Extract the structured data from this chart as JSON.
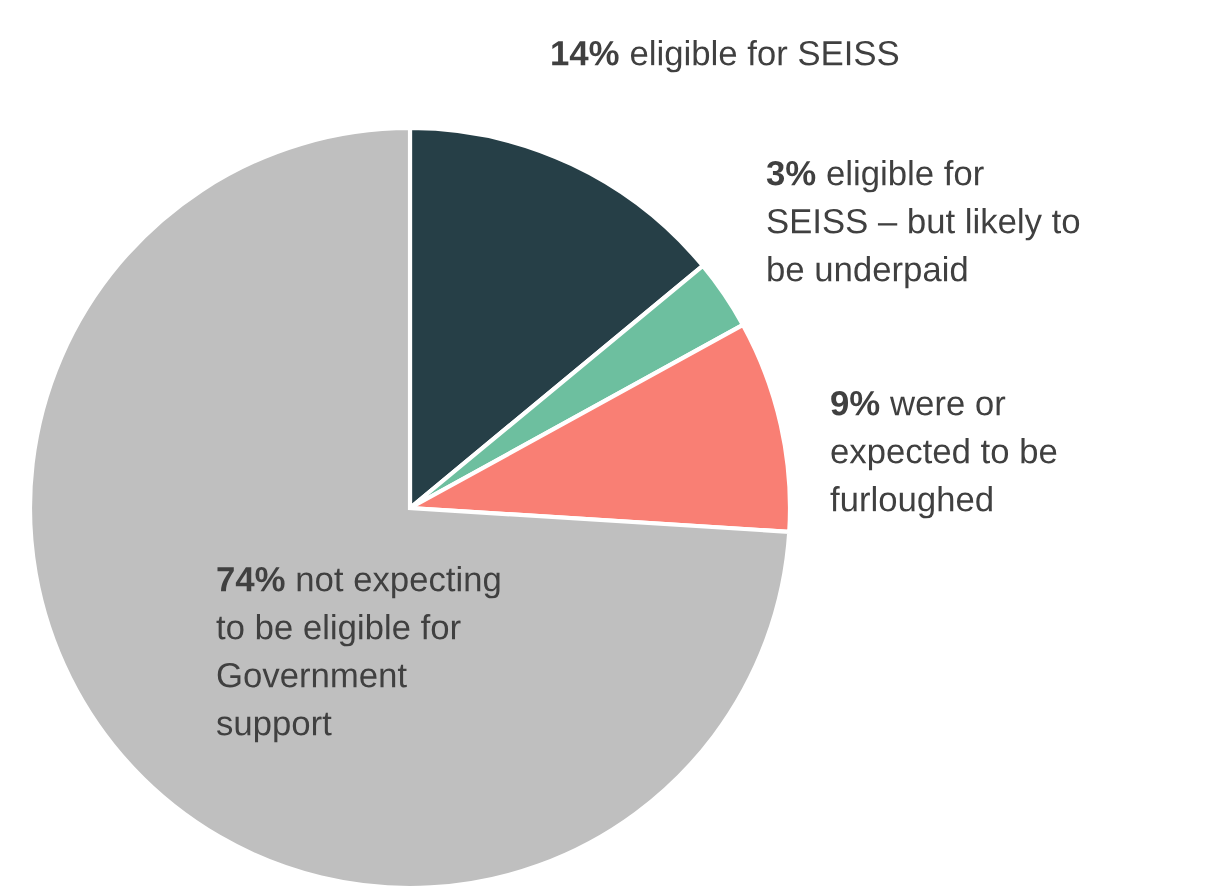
{
  "chart_data": {
    "type": "pie",
    "categories": [
      "eligible for SEISS",
      "eligible for\nSEISS – but likely to\nbe underpaid",
      "were or\nexpected to be\nfurloughed",
      "not expecting\nto be eligible for\nGovernment\nsupport"
    ],
    "values": [
      14,
      3,
      9,
      74
    ],
    "value_labels": [
      "14%",
      "3%",
      "9%",
      "74%"
    ],
    "colors": [
      "#263f47",
      "#6dbf9f",
      "#f97f74",
      "#bfbfbf"
    ],
    "legend": false
  }
}
